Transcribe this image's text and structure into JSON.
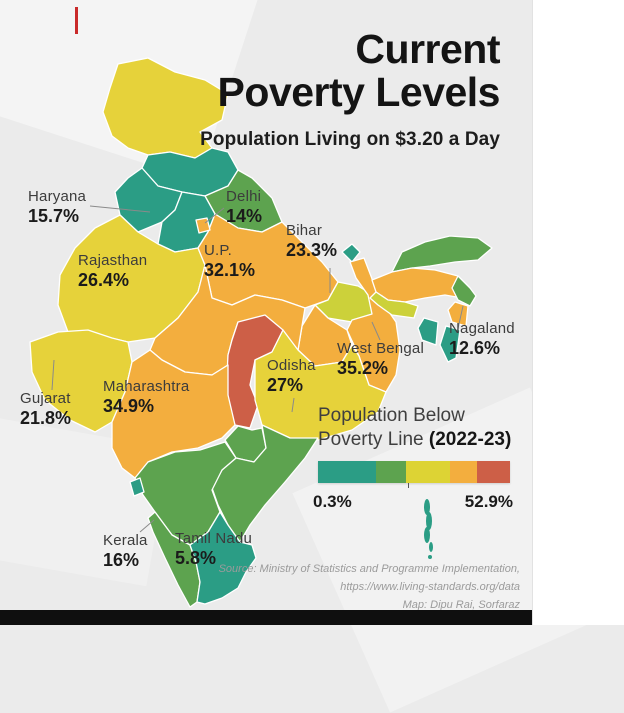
{
  "title": {
    "line1": "Current",
    "line2": "Poverty Levels",
    "subtitle": "Population Living on $3.20 a Day"
  },
  "states": [
    {
      "id": "haryana",
      "name": "Haryana",
      "value": "15.7%"
    },
    {
      "id": "delhi",
      "name": "Delhi",
      "value": "14%"
    },
    {
      "id": "bihar",
      "name": "Bihar",
      "value": "23.3%"
    },
    {
      "id": "rajasthan",
      "name": "Rajasthan",
      "value": "26.4%"
    },
    {
      "id": "up",
      "name": "U.P.",
      "value": "32.1%"
    },
    {
      "id": "nagaland",
      "name": "Nagaland",
      "value": "12.6%"
    },
    {
      "id": "west_bengal",
      "name": "West Bengal",
      "value": "35.2%"
    },
    {
      "id": "odisha",
      "name": "Odisha",
      "value": "27%"
    },
    {
      "id": "maharashtra",
      "name": "Maharashtra",
      "value": "34.9%"
    },
    {
      "id": "gujarat",
      "name": "Gujarat",
      "value": "21.8%"
    },
    {
      "id": "kerala",
      "name": "Kerala",
      "value": "16%"
    },
    {
      "id": "tamil_nadu",
      "name": "Tamil Nadu",
      "value": "5.8%"
    }
  ],
  "legend": {
    "title_line1": "Population Below",
    "title_line2_prefix": "Poverty Line ",
    "title_line2_bold": "(2022-23)",
    "min": "0.3%",
    "max": "52.9%",
    "colors": [
      "#2b9d85",
      "#5da34f",
      "#ddd334",
      "#f3ae3e",
      "#cd5f47"
    ],
    "segment_widths_pct": [
      30,
      16,
      23,
      14,
      17
    ]
  },
  "map": {
    "regions": [
      {
        "id": "jammu_kashmir",
        "name": "Jammu & Kashmir / Ladakh",
        "color": "#e6d23a"
      },
      {
        "id": "himachal",
        "name": "Himachal Pradesh",
        "color": "#2b9d85"
      },
      {
        "id": "punjab",
        "name": "Punjab",
        "color": "#2b9d85"
      },
      {
        "id": "uttarakhand",
        "name": "Uttarakhand",
        "color": "#5da34f"
      },
      {
        "id": "haryana",
        "name": "Haryana",
        "color": "#2b9d85"
      },
      {
        "id": "delhi_region",
        "name": "Delhi",
        "color": "#f3ae3e"
      },
      {
        "id": "rajasthan",
        "name": "Rajasthan",
        "color": "#e6d23a"
      },
      {
        "id": "up",
        "name": "Uttar Pradesh",
        "color": "#f3ae3e"
      },
      {
        "id": "bihar",
        "name": "Bihar",
        "color": "#ccd13a"
      },
      {
        "id": "sikkim",
        "name": "Sikkim",
        "color": "#2b9d85"
      },
      {
        "id": "west_bengal",
        "name": "West Bengal",
        "color": "#f3ae3e"
      },
      {
        "id": "jharkhand",
        "name": "Jharkhand",
        "color": "#f3ae3e"
      },
      {
        "id": "assam",
        "name": "Assam",
        "color": "#f3ae3e"
      },
      {
        "id": "arunachal",
        "name": "Arunachal Pradesh",
        "color": "#5da34f"
      },
      {
        "id": "meghalaya",
        "name": "Meghalaya",
        "color": "#ccd13a"
      },
      {
        "id": "nagaland_st",
        "name": "Nagaland",
        "color": "#5da34f"
      },
      {
        "id": "manipur",
        "name": "Manipur",
        "color": "#f3ae3e"
      },
      {
        "id": "mizoram",
        "name": "Mizoram",
        "color": "#2b9d85"
      },
      {
        "id": "tripura",
        "name": "Tripura",
        "color": "#2b9d85"
      },
      {
        "id": "gujarat",
        "name": "Gujarat",
        "color": "#e6d23a"
      },
      {
        "id": "mp",
        "name": "Madhya Pradesh",
        "color": "#f3ae3e"
      },
      {
        "id": "chhattisgarh",
        "name": "Chhattisgarh",
        "color": "#cd5f47"
      },
      {
        "id": "odisha",
        "name": "Odisha",
        "color": "#e6d23a"
      },
      {
        "id": "maharashtra",
        "name": "Maharashtra",
        "color": "#f3ae3e"
      },
      {
        "id": "telangana",
        "name": "Telangana",
        "color": "#5da34f"
      },
      {
        "id": "andhra",
        "name": "Andhra Pradesh",
        "color": "#5da34f"
      },
      {
        "id": "karnataka",
        "name": "Karnataka",
        "color": "#5da34f"
      },
      {
        "id": "goa",
        "name": "Goa",
        "color": "#2b9d85"
      },
      {
        "id": "kerala",
        "name": "Kerala",
        "color": "#5da34f"
      },
      {
        "id": "tamil_nadu",
        "name": "Tamil Nadu",
        "color": "#2b9d85"
      },
      {
        "id": "andaman",
        "name": "Andaman & Nicobar",
        "color": "#2b9d85"
      }
    ]
  },
  "source": {
    "line1": "Source: Ministry of Statistics and Programme Implementation,",
    "line2": "https://www.living-standards.org/data",
    "line3": "Map: Dipu Rai, Sorfaraz"
  }
}
